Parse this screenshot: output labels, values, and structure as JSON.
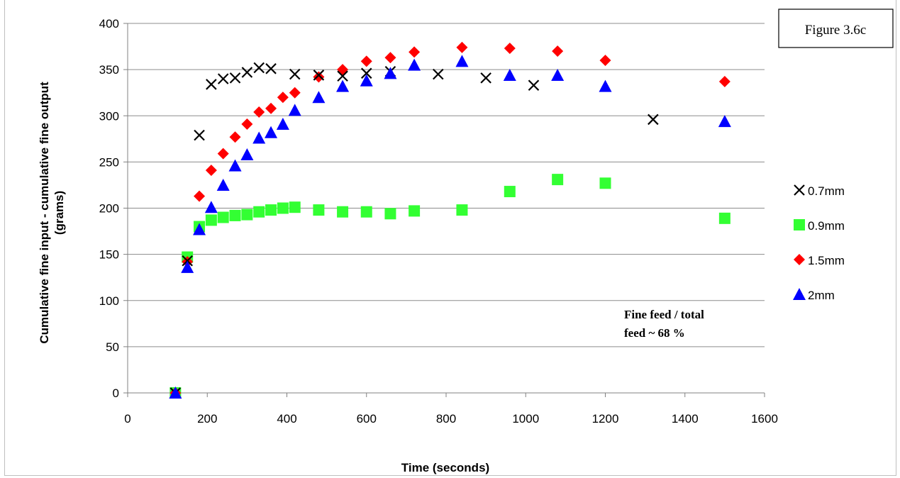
{
  "chart_data": {
    "type": "scatter",
    "figure_label": "Figure 3.6c",
    "xlabel": "Time (seconds)",
    "ylabel_line1": "Cumulative fine input - cumulative fine output",
    "ylabel_line2": "(grams)",
    "xlim": [
      0,
      1600
    ],
    "ylim": [
      0,
      400
    ],
    "xticks": [
      0,
      200,
      400,
      600,
      800,
      1000,
      1200,
      1400,
      1600
    ],
    "yticks": [
      0,
      50,
      100,
      150,
      200,
      250,
      300,
      350,
      400
    ],
    "grid": "horizontal",
    "legend_position": "right",
    "annotation_line1": "Fine feed / total",
    "annotation_line2": "feed ~ 68 %",
    "series": [
      {
        "name": "0.7mm",
        "marker": "x",
        "color": "#000000",
        "x": [
          120,
          150,
          180,
          210,
          240,
          270,
          300,
          330,
          360,
          420,
          480,
          540,
          600,
          660,
          780,
          900,
          1020,
          1320
        ],
        "y": [
          0,
          143,
          279,
          334,
          340,
          341,
          347,
          352,
          351,
          345,
          344,
          343,
          346,
          348,
          345,
          341,
          333,
          296
        ]
      },
      {
        "name": "0.9mm",
        "marker": "square",
        "color": "#33ff33",
        "x": [
          120,
          150,
          180,
          210,
          240,
          270,
          300,
          330,
          360,
          390,
          420,
          480,
          540,
          600,
          660,
          720,
          840,
          960,
          1080,
          1200,
          1500
        ],
        "y": [
          0,
          147,
          180,
          187,
          190,
          192,
          193,
          196,
          198,
          200,
          201,
          198,
          196,
          196,
          194,
          197,
          198,
          218,
          231,
          227,
          189
        ]
      },
      {
        "name": "1.5mm",
        "marker": "diamond",
        "color": "#ff0000",
        "x": [
          120,
          150,
          180,
          210,
          240,
          270,
          300,
          330,
          360,
          390,
          420,
          480,
          540,
          600,
          660,
          720,
          840,
          960,
          1080,
          1200,
          1500
        ],
        "y": [
          0,
          142,
          213,
          241,
          259,
          277,
          291,
          304,
          308,
          320,
          325,
          342,
          350,
          359,
          363,
          369,
          374,
          373,
          370,
          360,
          337
        ]
      },
      {
        "name": "2mm",
        "marker": "triangle",
        "color": "#0000ff",
        "x": [
          120,
          150,
          180,
          210,
          240,
          270,
          300,
          330,
          360,
          390,
          420,
          480,
          540,
          600,
          660,
          720,
          840,
          960,
          1080,
          1200,
          1500
        ],
        "y": [
          0,
          136,
          177,
          201,
          225,
          246,
          258,
          276,
          282,
          291,
          306,
          320,
          332,
          338,
          346,
          355,
          359,
          344,
          344,
          332,
          294
        ]
      }
    ]
  }
}
